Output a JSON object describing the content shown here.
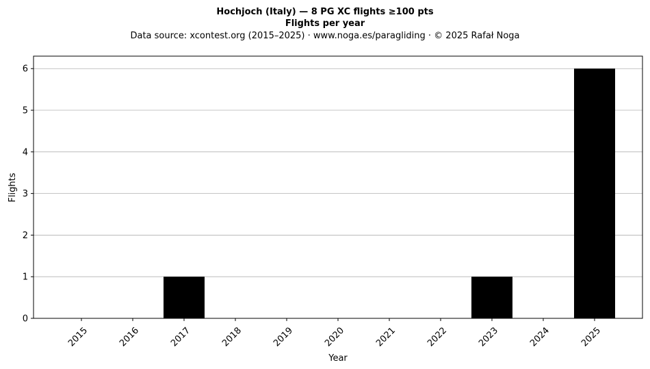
{
  "chart_data": {
    "type": "bar",
    "title": "Hochjoch (Italy)  —  8 PG XC flights ≥100 pts",
    "title2": "Flights per year",
    "subtitle": "Data source: xcontest.org (2015–2025)  ·  www.noga.es/paragliding  ·  © 2025 Rafał Noga",
    "xlabel": "Year",
    "ylabel": "Flights",
    "categories": [
      "2015",
      "2016",
      "2017",
      "2018",
      "2019",
      "2020",
      "2021",
      "2022",
      "2023",
      "2024",
      "2025"
    ],
    "values": [
      0,
      0,
      1,
      0,
      0,
      0,
      0,
      0,
      1,
      0,
      6
    ],
    "ylim": [
      0,
      6.3
    ],
    "yticks": [
      "0",
      "1",
      "2",
      "3",
      "4",
      "5",
      "6"
    ],
    "grid": "horizontal",
    "bar_color": "#000000",
    "grid_color": "#b0b0b0"
  }
}
